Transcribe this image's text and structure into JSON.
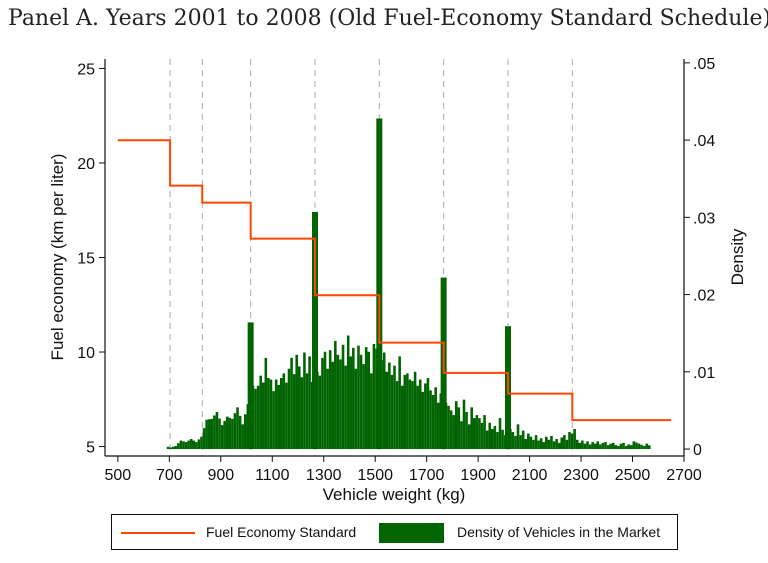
{
  "title": "Panel A. Years 2001 to 2008 (Old Fuel-Economy Standard Schedule)",
  "chart_data": {
    "type": "bar",
    "xlabel": "Vehicle weight (kg)",
    "ylabel_left": "Fuel economy (km per liter)",
    "ylabel_right": "Density",
    "xlim": [
      450,
      2700
    ],
    "ylim_left": [
      4.5,
      25.5
    ],
    "ylim_right": [
      -0.0009,
      0.0505
    ],
    "x_ticks": [
      500,
      700,
      900,
      1100,
      1300,
      1500,
      1700,
      1900,
      2100,
      2300,
      2500,
      2700
    ],
    "y_left_ticks": [
      5,
      10,
      15,
      20,
      25
    ],
    "y_right_ticks": [
      0,
      0.01,
      0.02,
      0.03,
      0.04,
      0.05
    ],
    "y_right_tick_labels": [
      "0",
      ".01",
      ".02",
      ".03",
      ".04",
      ".05"
    ],
    "vertical_reference_lines": [
      703,
      828,
      1016,
      1266,
      1516,
      1766,
      2016,
      2266
    ],
    "grid": false,
    "legend_position": "bottom",
    "series": [
      {
        "name": "Fuel Economy Standard",
        "type": "step",
        "color": "#ff4500",
        "steps": [
          {
            "x_start": 500,
            "x_end": 703,
            "y": 21.2
          },
          {
            "x_start": 703,
            "x_end": 828,
            "y": 18.8
          },
          {
            "x_start": 828,
            "x_end": 1016,
            "y": 17.9
          },
          {
            "x_start": 1016,
            "x_end": 1266,
            "y": 16.0
          },
          {
            "x_start": 1266,
            "x_end": 1516,
            "y": 13.0
          },
          {
            "x_start": 1516,
            "x_end": 1766,
            "y": 10.5
          },
          {
            "x_start": 1766,
            "x_end": 2016,
            "y": 8.9
          },
          {
            "x_start": 2016,
            "x_end": 2266,
            "y": 7.8
          },
          {
            "x_start": 2266,
            "x_end": 2650,
            "y": 6.4
          }
        ]
      },
      {
        "name": "Density of Vehicles in the Market",
        "type": "bar",
        "color": "#006400",
        "bin_width": 10,
        "anchors": [
          [
            690,
            0.0003
          ],
          [
            700,
            0.0002
          ],
          [
            720,
            0.0004
          ],
          [
            740,
            0.0011
          ],
          [
            760,
            0.0009
          ],
          [
            780,
            0.0013
          ],
          [
            800,
            0.0009
          ],
          [
            820,
            0.0016
          ],
          [
            840,
            0.0038
          ],
          [
            860,
            0.0039
          ],
          [
            880,
            0.0048
          ],
          [
            900,
            0.0031
          ],
          [
            920,
            0.0042
          ],
          [
            940,
            0.0039
          ],
          [
            960,
            0.0054
          ],
          [
            980,
            0.0032
          ],
          [
            1000,
            0.0058
          ],
          [
            1010,
            0.0068
          ],
          [
            1020,
            0.0082
          ],
          [
            1030,
            0.0078
          ],
          [
            1040,
            0.0082
          ],
          [
            1050,
            0.0095
          ],
          [
            1060,
            0.0086
          ],
          [
            1070,
            0.0118
          ],
          [
            1080,
            0.0092
          ],
          [
            1090,
            0.009
          ],
          [
            1100,
            0.0075
          ],
          [
            1110,
            0.009
          ],
          [
            1120,
            0.0083
          ],
          [
            1130,
            0.0092
          ],
          [
            1140,
            0.0098
          ],
          [
            1150,
            0.0086
          ],
          [
            1160,
            0.0104
          ],
          [
            1170,
            0.0118
          ],
          [
            1180,
            0.0097
          ],
          [
            1190,
            0.0122
          ],
          [
            1200,
            0.0107
          ],
          [
            1210,
            0.0093
          ],
          [
            1220,
            0.0125
          ],
          [
            1230,
            0.0098
          ],
          [
            1240,
            0.012
          ],
          [
            1250,
            0.0087
          ],
          [
            1260,
            0.0132
          ],
          [
            1270,
            0.01
          ],
          [
            1280,
            0.0095
          ],
          [
            1290,
            0.0118
          ],
          [
            1300,
            0.0126
          ],
          [
            1310,
            0.0104
          ],
          [
            1320,
            0.0128
          ],
          [
            1330,
            0.0113
          ],
          [
            1340,
            0.014
          ],
          [
            1350,
            0.0122
          ],
          [
            1360,
            0.0116
          ],
          [
            1370,
            0.0135
          ],
          [
            1380,
            0.0108
          ],
          [
            1390,
            0.0147
          ],
          [
            1400,
            0.012
          ],
          [
            1410,
            0.0131
          ],
          [
            1420,
            0.0104
          ],
          [
            1430,
            0.0134
          ],
          [
            1440,
            0.0122
          ],
          [
            1450,
            0.011
          ],
          [
            1460,
            0.0132
          ],
          [
            1470,
            0.0126
          ],
          [
            1480,
            0.0098
          ],
          [
            1490,
            0.0136
          ],
          [
            1500,
            0.013
          ],
          [
            1510,
            0.0122
          ],
          [
            1520,
            0.0115
          ],
          [
            1530,
            0.0125
          ],
          [
            1540,
            0.01
          ],
          [
            1550,
            0.0112
          ],
          [
            1560,
            0.0096
          ],
          [
            1570,
            0.0108
          ],
          [
            1580,
            0.0088
          ],
          [
            1590,
            0.012
          ],
          [
            1600,
            0.0082
          ],
          [
            1610,
            0.0096
          ],
          [
            1620,
            0.0098
          ],
          [
            1630,
            0.009
          ],
          [
            1640,
            0.0088
          ],
          [
            1650,
            0.01
          ],
          [
            1660,
            0.0082
          ],
          [
            1670,
            0.009
          ],
          [
            1680,
            0.0074
          ],
          [
            1690,
            0.0085
          ],
          [
            1700,
            0.0092
          ],
          [
            1710,
            0.0076
          ],
          [
            1720,
            0.007
          ],
          [
            1730,
            0.008
          ],
          [
            1740,
            0.006
          ],
          [
            1750,
            0.0072
          ],
          [
            1760,
            0.0064
          ],
          [
            1780,
            0.0056
          ],
          [
            1790,
            0.005
          ],
          [
            1800,
            0.0044
          ],
          [
            1810,
            0.0062
          ],
          [
            1820,
            0.0054
          ],
          [
            1830,
            0.0036
          ],
          [
            1840,
            0.0064
          ],
          [
            1850,
            0.0048
          ],
          [
            1860,
            0.0032
          ],
          [
            1870,
            0.0054
          ],
          [
            1880,
            0.004
          ],
          [
            1890,
            0.0044
          ],
          [
            1900,
            0.004
          ],
          [
            1910,
            0.0034
          ],
          [
            1920,
            0.0044
          ],
          [
            1930,
            0.0024
          ],
          [
            1940,
            0.0034
          ],
          [
            1950,
            0.0026
          ],
          [
            1960,
            0.003
          ],
          [
            1970,
            0.0022
          ],
          [
            1980,
            0.004
          ],
          [
            1990,
            0.0025
          ],
          [
            2000,
            0.0018
          ],
          [
            2010,
            0.003
          ],
          [
            2030,
            0.0022
          ],
          [
            2040,
            0.0017
          ],
          [
            2050,
            0.0032
          ],
          [
            2060,
            0.0018
          ],
          [
            2070,
            0.0024
          ],
          [
            2080,
            0.0013
          ],
          [
            2090,
            0.002
          ],
          [
            2100,
            0.0016
          ],
          [
            2110,
            0.0012
          ],
          [
            2120,
            0.0018
          ],
          [
            2130,
            0.0011
          ],
          [
            2140,
            0.0014
          ],
          [
            2150,
            0.0009
          ],
          [
            2160,
            0.0016
          ],
          [
            2170,
            0.0012
          ],
          [
            2180,
            0.0017
          ],
          [
            2190,
            0.001
          ],
          [
            2200,
            0.0013
          ],
          [
            2210,
            0.0008
          ],
          [
            2220,
            0.0015
          ],
          [
            2230,
            0.0018
          ],
          [
            2240,
            0.0012
          ],
          [
            2250,
            0.0022
          ],
          [
            2260,
            0.002
          ],
          [
            2270,
            0.0026
          ],
          [
            2280,
            0.0012
          ],
          [
            2290,
            0.0008
          ],
          [
            2300,
            0.0011
          ],
          [
            2310,
            0.0007
          ],
          [
            2320,
            0.001
          ],
          [
            2330,
            0.0006
          ],
          [
            2340,
            0.0009
          ],
          [
            2350,
            0.0007
          ],
          [
            2360,
            0.001
          ],
          [
            2370,
            0.0006
          ],
          [
            2380,
            0.0008
          ],
          [
            2390,
            0.0009
          ],
          [
            2400,
            0.0005
          ],
          [
            2410,
            0.0007
          ],
          [
            2420,
            0.0008
          ],
          [
            2430,
            0.0005
          ],
          [
            2440,
            0.0004
          ],
          [
            2450,
            0.0007
          ],
          [
            2460,
            0.0008
          ],
          [
            2470,
            0.0004
          ],
          [
            2480,
            0.0006
          ],
          [
            2490,
            0.0005
          ],
          [
            2500,
            0.001
          ],
          [
            2520,
            0.0007
          ],
          [
            2540,
            0.0004
          ],
          [
            2550,
            0.0007
          ],
          [
            2560,
            0.0005
          ]
        ],
        "spikes": [
          {
            "x": 1016,
            "value": 0.0164
          },
          {
            "x": 1266,
            "value": 0.0307
          },
          {
            "x": 1516,
            "value": 0.0428
          },
          {
            "x": 1766,
            "value": 0.0222
          },
          {
            "x": 2016,
            "value": 0.0159
          }
        ]
      }
    ]
  },
  "legend": {
    "line_label": "Fuel Economy Standard",
    "bar_label": "Density of Vehicles in the Market"
  }
}
